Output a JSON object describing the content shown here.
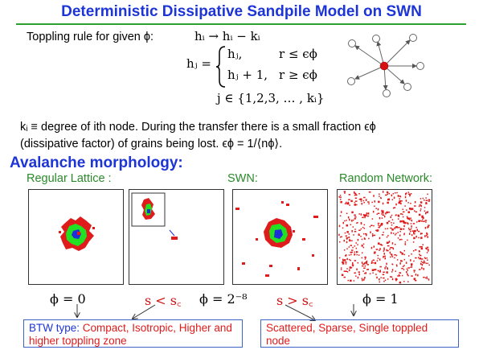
{
  "title": "Deterministic Dissipative Sandpile Model on SWN",
  "rule": {
    "intro": "Toppling rule for given ϕ:",
    "eq1": "hᵢ → hᵢ − kᵢ",
    "hj_lhs": "hⱼ =",
    "case1_val": "hⱼ,",
    "case1_cond": "r ≤ ϵϕ",
    "case2_val": "hⱼ + 1,",
    "case2_cond": "r ≥ ϵϕ",
    "j_set": "j ∈ {1,2,3, … , kᵢ}"
  },
  "description": {
    "line1": "kᵢ ≡ degree of ith node. During the transfer there is a small fraction ϵϕ",
    "line2": "(dissipative factor) of grains being lost.  ϵϕ = 1/⟨nϕ⟩."
  },
  "section_title": "Avalanche morphology:",
  "panel_labels": {
    "regular": "Regular Lattice :",
    "swn": "SWN:",
    "random": "Random Network:"
  },
  "phi_labels": {
    "phi0": "ϕ = 0",
    "phi_swn": "ϕ = 2⁻⁸",
    "phi1": "ϕ = 1"
  },
  "conditions": {
    "less": "s < s꜀",
    "greater": "s > s꜀"
  },
  "boxes": {
    "left_prefix": "BTW type: ",
    "left_text": "Compact, Isotropic, Higher and  higher toppling zone",
    "right_text": "Scattered, Sparse, Single toppled node"
  },
  "colors": {
    "title_blue": "#1d35d6",
    "rule_green": "#2da02d",
    "label_green": "#2a8a2a",
    "cluster_red": "#e01b1b",
    "cluster_green": "#22e022",
    "cluster_blue": "#1f2fd8"
  }
}
